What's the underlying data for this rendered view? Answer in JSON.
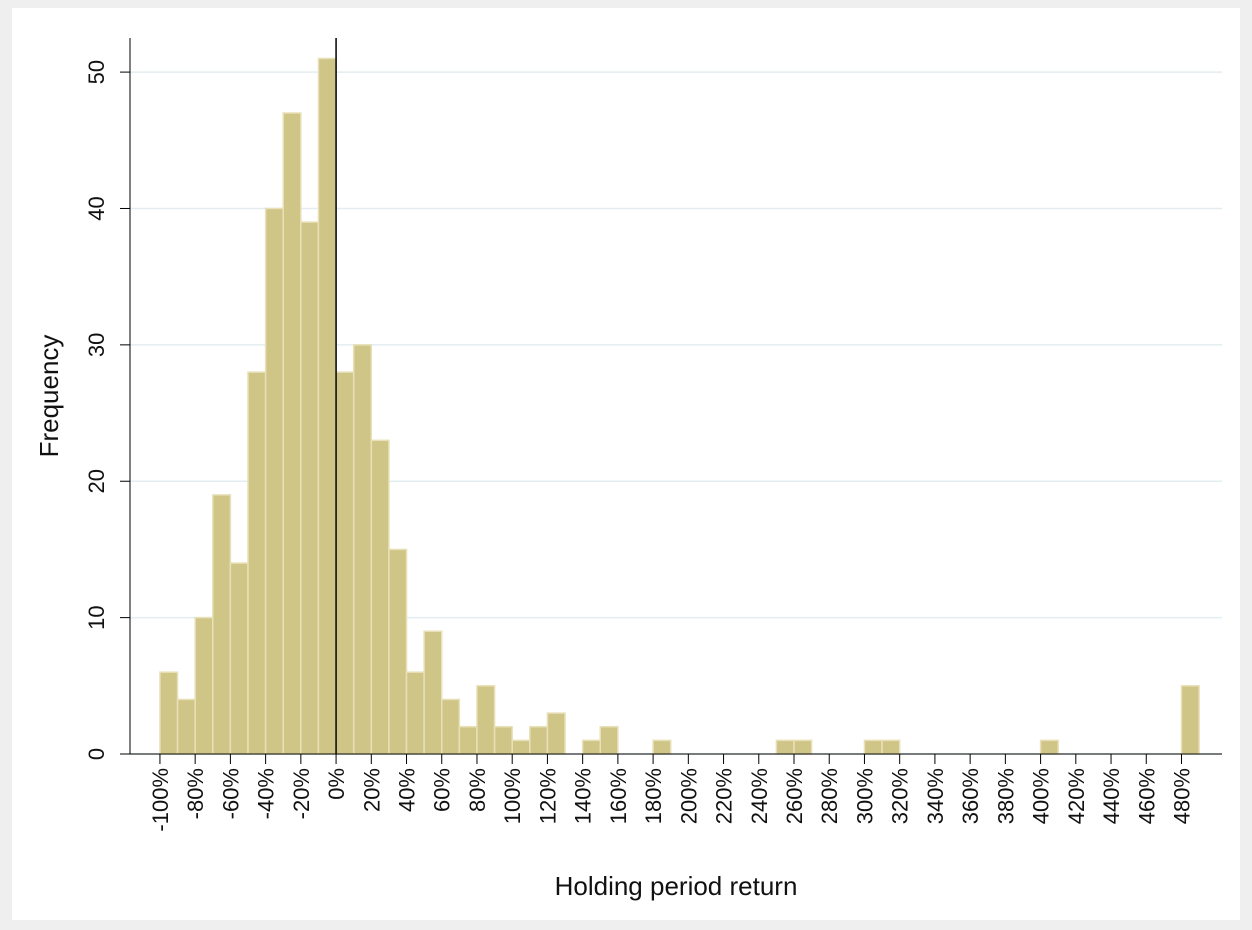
{
  "chart_data": {
    "type": "histogram",
    "xlabel": "Holding period return",
    "ylabel": "Frequency",
    "bins": [
      -100,
      -90,
      -80,
      -70,
      -60,
      -50,
      -40,
      -30,
      -20,
      -10,
      0,
      10,
      20,
      30,
      40,
      50,
      60,
      70,
      80,
      90,
      100,
      110,
      120,
      130,
      140,
      150,
      160,
      170,
      180,
      190,
      200,
      210,
      220,
      230,
      240,
      250,
      260,
      270,
      280,
      290,
      300,
      310,
      320,
      330,
      340,
      350,
      360,
      370,
      380,
      390,
      400,
      410,
      420,
      430,
      440,
      450,
      460,
      470,
      480,
      490
    ],
    "values": [
      6,
      4,
      10,
      19,
      14,
      28,
      40,
      47,
      39,
      51,
      28,
      30,
      23,
      15,
      6,
      9,
      4,
      2,
      5,
      2,
      1,
      2,
      3,
      0,
      1,
      2,
      0,
      0,
      1,
      0,
      0,
      0,
      0,
      0,
      0,
      1,
      1,
      0,
      0,
      0,
      1,
      1,
      0,
      0,
      0,
      0,
      0,
      0,
      0,
      0,
      1,
      0,
      0,
      0,
      0,
      0,
      0,
      0,
      5
    ],
    "color": "#cfc587",
    "xlim": [
      -117,
      503
    ],
    "ylim": [
      0,
      52.5
    ],
    "xticks": [
      {
        "value": -100,
        "label": "-100%"
      },
      {
        "value": -80,
        "label": "-80%"
      },
      {
        "value": -60,
        "label": "-60%"
      },
      {
        "value": -40,
        "label": "-40%"
      },
      {
        "value": -20,
        "label": "-20%"
      },
      {
        "value": 0,
        "label": "0%"
      },
      {
        "value": 20,
        "label": "20%"
      },
      {
        "value": 40,
        "label": "40%"
      },
      {
        "value": 60,
        "label": "60%"
      },
      {
        "value": 80,
        "label": "80%"
      },
      {
        "value": 100,
        "label": "100%"
      },
      {
        "value": 120,
        "label": "120%"
      },
      {
        "value": 140,
        "label": "140%"
      },
      {
        "value": 160,
        "label": "160%"
      },
      {
        "value": 180,
        "label": "180%"
      },
      {
        "value": 200,
        "label": "200%"
      },
      {
        "value": 220,
        "label": "220%"
      },
      {
        "value": 240,
        "label": "240%"
      },
      {
        "value": 260,
        "label": "260%"
      },
      {
        "value": 280,
        "label": "280%"
      },
      {
        "value": 300,
        "label": "300%"
      },
      {
        "value": 320,
        "label": "320%"
      },
      {
        "value": 340,
        "label": "340%"
      },
      {
        "value": 360,
        "label": "360%"
      },
      {
        "value": 380,
        "label": "380%"
      },
      {
        "value": 400,
        "label": "400%"
      },
      {
        "value": 420,
        "label": "420%"
      },
      {
        "value": 440,
        "label": "440%"
      },
      {
        "value": 460,
        "label": "460%"
      },
      {
        "value": 480,
        "label": "480%"
      }
    ],
    "yticks": [
      0,
      10,
      20,
      30,
      40,
      50
    ],
    "grid": true,
    "reference_line": 0
  }
}
